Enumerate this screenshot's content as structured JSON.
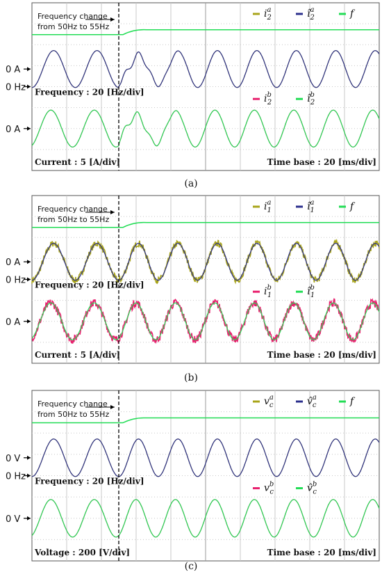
{
  "colors": {
    "olive": "#a8a41a",
    "blue": "#2b2f8c",
    "green": "#22dd55",
    "pink": "#e8206e",
    "grid": "#c8c8c8",
    "text": "#111111"
  },
  "chart_data": [
    {
      "type": "line",
      "panel_label": "(a)",
      "annotation": {
        "line1": "Frequency change",
        "line2": "from 50Hz to 55Hz"
      },
      "legend_top": [
        {
          "name": "i",
          "sup": "a",
          "sub": "2",
          "hat": false,
          "color": "olive"
        },
        {
          "name": "i",
          "sup": "a",
          "sub": "2",
          "hat": true,
          "color": "blue"
        },
        {
          "name": "f",
          "sup": "",
          "sub": "",
          "hat": false,
          "color": "green"
        }
      ],
      "legend_bottom": [
        {
          "name": "i",
          "sup": "b",
          "sub": "2",
          "hat": false,
          "color": "pink"
        },
        {
          "name": "i",
          "sup": "b",
          "sub": "2",
          "hat": true,
          "color": "green"
        }
      ],
      "left_markers": [
        "0 A",
        "0 Hz",
        "0 A"
      ],
      "scale_labels": {
        "freq": "Frequency : 20 [Hz/div]",
        "amp": "Current : 5 [A/div]",
        "time": "Time base : 20 [ms/div]"
      },
      "frequency_change": {
        "from_hz": 50,
        "to_hz": 55,
        "step_time_div": 3.1
      },
      "noise_top": 0.0,
      "noise_bottom": 0.0,
      "x_divisions": 10,
      "y_divisions": 8
    },
    {
      "type": "line",
      "panel_label": "(b)",
      "annotation": {
        "line1": "Frequency change",
        "line2": "from 50Hz to 55Hz"
      },
      "legend_top": [
        {
          "name": "i",
          "sup": "a",
          "sub": "1",
          "hat": false,
          "color": "olive"
        },
        {
          "name": "i",
          "sup": "a",
          "sub": "1",
          "hat": true,
          "color": "blue"
        },
        {
          "name": "f",
          "sup": "",
          "sub": "",
          "hat": false,
          "color": "green"
        }
      ],
      "legend_bottom": [
        {
          "name": "i",
          "sup": "b",
          "sub": "1",
          "hat": false,
          "color": "pink"
        },
        {
          "name": "i",
          "sup": "b",
          "sub": "1",
          "hat": true,
          "color": "green"
        }
      ],
      "left_markers": [
        "0 A",
        "0 Hz",
        "0 A"
      ],
      "scale_labels": {
        "freq": "Frequency : 20 [Hz/div]",
        "amp": "Current : 5 [A/div]",
        "time": "Time base : 20 [ms/div]"
      },
      "frequency_change": {
        "from_hz": 50,
        "to_hz": 55,
        "step_time_div": 3.1
      },
      "noise_top": 0.18,
      "noise_bottom": 0.22,
      "x_divisions": 10,
      "y_divisions": 8
    },
    {
      "type": "line",
      "panel_label": "(c)",
      "annotation": {
        "line1": "Frequency change",
        "line2": "from 50Hz to 55Hz"
      },
      "legend_top": [
        {
          "name": "v",
          "sup": "a",
          "sub": "c",
          "hat": false,
          "color": "olive"
        },
        {
          "name": "v",
          "sup": "a",
          "sub": "c",
          "hat": true,
          "color": "blue"
        },
        {
          "name": "f",
          "sup": "",
          "sub": "",
          "hat": false,
          "color": "green"
        }
      ],
      "legend_bottom": [
        {
          "name": "v",
          "sup": "b",
          "sub": "c",
          "hat": false,
          "color": "pink"
        },
        {
          "name": "v",
          "sup": "b",
          "sub": "c",
          "hat": true,
          "color": "green"
        }
      ],
      "left_markers": [
        "0 V",
        "0 Hz",
        "0 V"
      ],
      "scale_labels": {
        "freq": "Frequency : 20 [Hz/div]",
        "amp": "Voltage : 200 [V/div]",
        "time": "Time base : 20 [ms/div]"
      },
      "frequency_change": {
        "from_hz": 50,
        "to_hz": 55,
        "step_time_div": 3.1
      },
      "noise_top": 0.0,
      "noise_bottom": 0.0,
      "x_divisions": 10,
      "y_divisions": 8
    }
  ]
}
